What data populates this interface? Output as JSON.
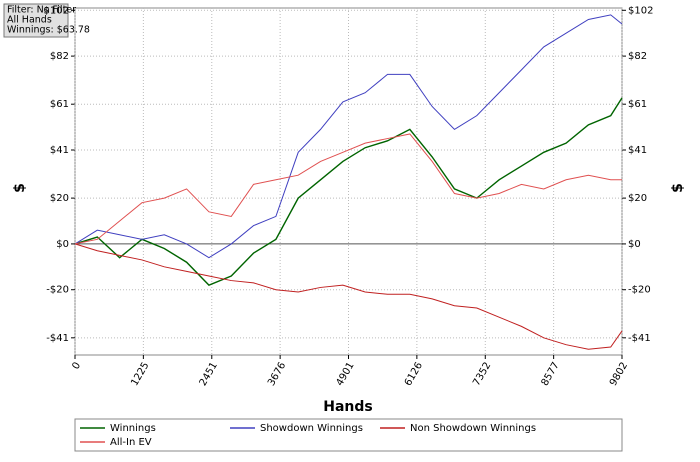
{
  "info": {
    "filter": "Filter: No Filter",
    "hands": "All Hands",
    "winnings": "Winnings: $63.78"
  },
  "chart_data": {
    "type": "line",
    "x_label": "Hands",
    "y_label": "$",
    "y2_label": "$",
    "x": [
      0,
      400,
      800,
      1200,
      1600,
      2000,
      2400,
      2800,
      3200,
      3600,
      4000,
      4400,
      4800,
      5200,
      5600,
      6000,
      6400,
      6800,
      7200,
      7600,
      8000,
      8400,
      8800,
      9200,
      9600,
      9802
    ],
    "xlim": [
      0,
      9802
    ],
    "xticks": [
      0,
      1225,
      2451,
      3676,
      4901,
      6126,
      7352,
      8577,
      9802
    ],
    "ylim": [
      -48.5,
      103
    ],
    "yticks": [
      {
        "value": 102,
        "label": "$102"
      },
      {
        "value": 82,
        "label": "$82"
      },
      {
        "value": 61,
        "label": "$61"
      },
      {
        "value": 41,
        "label": "$41"
      },
      {
        "value": 20,
        "label": "$20"
      },
      {
        "value": 0,
        "label": "$0"
      },
      {
        "value": -20,
        "label": "-$20"
      },
      {
        "value": -41,
        "label": "-$41"
      }
    ],
    "y2lim": [
      -48.5,
      103
    ],
    "y2ticks": [
      {
        "value": 102,
        "label": "$102"
      },
      {
        "value": 82,
        "label": "$82"
      },
      {
        "value": 61,
        "label": "$61"
      },
      {
        "value": 41,
        "label": "$41"
      },
      {
        "value": 20,
        "label": "$20"
      },
      {
        "value": 0,
        "label": "$0"
      },
      {
        "value": -20,
        "label": "-$20"
      },
      {
        "value": -41,
        "label": "-$41"
      }
    ],
    "grid": true,
    "series": [
      {
        "name": "Winnings",
        "color": "#006400",
        "values": [
          0,
          3,
          -6,
          2,
          -2,
          -8,
          -18,
          -14,
          -4,
          2,
          20,
          28,
          36,
          42,
          45,
          50,
          38,
          24,
          20,
          28,
          34,
          40,
          44,
          52,
          56,
          63.78
        ]
      },
      {
        "name": "Showdown Winnings",
        "color": "#4040c0",
        "values": [
          0,
          6,
          4,
          2,
          4,
          0,
          -6,
          0,
          8,
          12,
          40,
          50,
          62,
          66,
          74,
          74,
          60,
          50,
          56,
          66,
          76,
          86,
          92,
          98,
          100,
          96
        ]
      },
      {
        "name": "Non Showdown Winnings",
        "color": "#c02020",
        "values": [
          0,
          -3,
          -5,
          -7,
          -10,
          -12,
          -14,
          -16,
          -17,
          -20,
          -21,
          -19,
          -18,
          -21,
          -22,
          -22,
          -24,
          -27,
          -28,
          -32,
          -36,
          -41,
          -44,
          -46,
          -45,
          -38
        ]
      },
      {
        "name": "All-In EV",
        "color": "#e05050",
        "values": [
          0,
          2,
          10,
          18,
          20,
          24,
          14,
          12,
          26,
          28,
          30,
          36,
          40,
          44,
          46,
          48,
          36,
          22,
          20,
          22,
          26,
          24,
          28,
          30,
          28,
          28
        ]
      }
    ]
  }
}
